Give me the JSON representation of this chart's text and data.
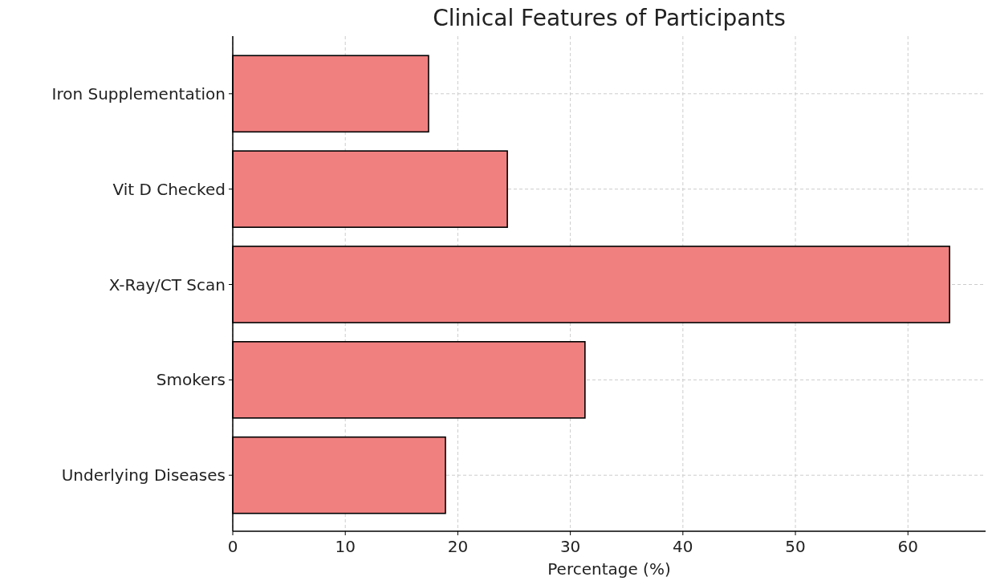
{
  "chart_data": {
    "type": "bar",
    "orientation": "horizontal",
    "title": "Clinical Features of Participants",
    "xlabel": "Percentage (%)",
    "categories": [
      "Iron Supplementation",
      "Vit D Checked",
      "X-Ray/CT Scan",
      "Smokers",
      "Underlying Diseases"
    ],
    "values": [
      17.4,
      24.4,
      63.7,
      31.3,
      18.9
    ],
    "color": "#f08080",
    "xlim": [
      0,
      66.9
    ],
    "xticks": [
      0,
      10,
      20,
      30,
      40,
      50,
      60
    ],
    "grid": true
  }
}
